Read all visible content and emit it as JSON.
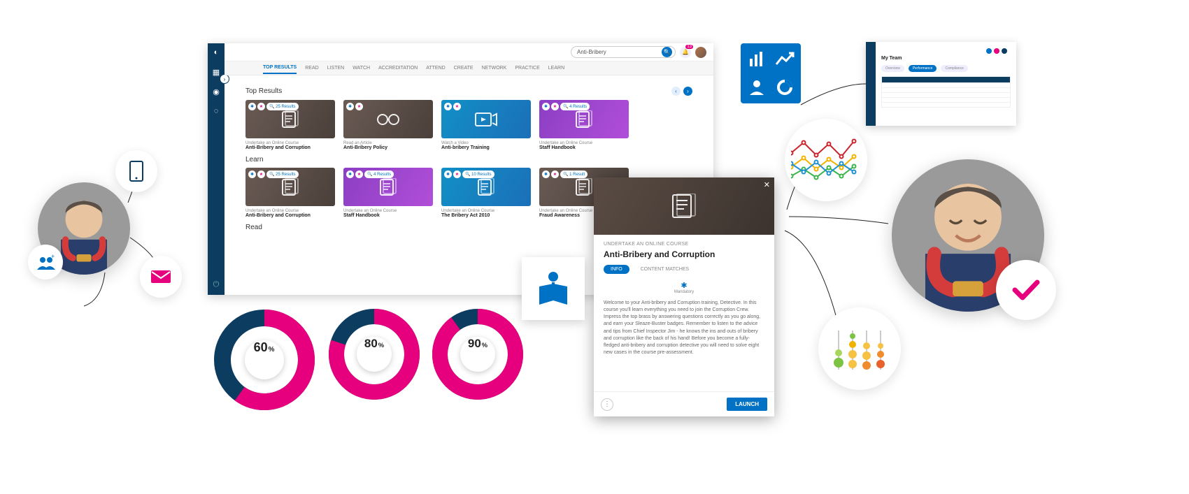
{
  "colors": {
    "navy": "#0d3c61",
    "blue": "#0072c6",
    "magenta": "#e6007e",
    "grey": "#888888"
  },
  "app": {
    "search_value": "Anti-Bribery",
    "notification_count": "13",
    "tabs": [
      "TOP RESULTS",
      "READ",
      "LISTEN",
      "WATCH",
      "ACCREDITATION",
      "ATTEND",
      "CREATE",
      "NETWORK",
      "PRACTICE",
      "LEARN"
    ],
    "active_tab_index": 0,
    "sections": {
      "top_results": {
        "heading": "Top Results",
        "cards": [
          {
            "type": "Undertake an Online Course",
            "title": "Anti-Bribery and Corruption",
            "badge": "25 Results",
            "variant": "brown",
            "icon": "document"
          },
          {
            "type": "Read an Article",
            "title": "Anti-Bribery Policy",
            "badge": "",
            "variant": "brown",
            "icon": "glasses"
          },
          {
            "type": "Watch a Video",
            "title": "Anti-bribery Training",
            "badge": "",
            "variant": "blue",
            "icon": "video"
          },
          {
            "type": "Undertake an Online Course",
            "title": "Staff Handbook",
            "badge": "4 Results",
            "variant": "purple",
            "icon": "document"
          }
        ]
      },
      "learn": {
        "heading": "Learn",
        "cards": [
          {
            "type": "Undertake an Online Course",
            "title": "Anti-Bribery and Corruption",
            "badge": "25 Results",
            "variant": "brown",
            "icon": "document"
          },
          {
            "type": "Undertake an Online Course",
            "title": "Staff Handbook",
            "badge": "4 Results",
            "variant": "purple",
            "icon": "document"
          },
          {
            "type": "Undertake an Online Course",
            "title": "The Bribery Act 2010",
            "badge": "10 Results",
            "variant": "blue",
            "icon": "document"
          },
          {
            "type": "Undertake an Online Course",
            "title": "Fraud Awareness",
            "badge": "1 Result",
            "variant": "brown",
            "icon": "document"
          }
        ]
      },
      "read": {
        "heading": "Read"
      }
    }
  },
  "modal": {
    "eyebrow": "UNDERTAKE AN ONLINE COURSE",
    "title": "Anti-Bribery and Corruption",
    "tabs": {
      "info": "INFO",
      "matches": "CONTENT MATCHES"
    },
    "mandatory_label": "Mandatory",
    "description": "Welcome to your Anti-bribery and Corruption training, Detective. In this course you'll learn everything you need to join the Corruption Crew. Impress the top brass by answering questions correctly as you go along, and earn your Sleaze-Buster badges. Remember to listen to the advice and tips from Chief Inspector Jim - he knows the ins and outs of bribery and corruption like the back of his hand! Before you become a fully-fledged anti-bribery and corruption detective you will need to solve eight new cases in the course pre-assessment.",
    "launch_label": "LAUNCH"
  },
  "donuts": [
    {
      "value": 60,
      "radius": 72,
      "stroke": 24,
      "primary": "#e6007e",
      "secondary": "#0d3c61"
    },
    {
      "value": 80,
      "radius": 65,
      "stroke": 22,
      "primary": "#e6007e",
      "secondary": "#0d3c61"
    },
    {
      "value": 90,
      "radius": 65,
      "stroke": 22,
      "primary": "#e6007e",
      "secondary": "#0d3c61"
    }
  ],
  "linechart": {
    "width": 100,
    "height": 70,
    "series": [
      {
        "color": "#c9252c",
        "points": [
          [
            0,
            25
          ],
          [
            18,
            10
          ],
          [
            36,
            28
          ],
          [
            54,
            12
          ],
          [
            72,
            30
          ],
          [
            90,
            8
          ]
        ]
      },
      {
        "color": "#f0b400",
        "points": [
          [
            0,
            45
          ],
          [
            18,
            32
          ],
          [
            36,
            48
          ],
          [
            54,
            34
          ],
          [
            72,
            46
          ],
          [
            90,
            30
          ]
        ]
      },
      {
        "color": "#3bb54a",
        "points": [
          [
            0,
            58
          ],
          [
            18,
            48
          ],
          [
            36,
            60
          ],
          [
            54,
            46
          ],
          [
            72,
            58
          ],
          [
            90,
            44
          ]
        ]
      },
      {
        "color": "#1e90d2",
        "points": [
          [
            0,
            40
          ],
          [
            18,
            52
          ],
          [
            36,
            38
          ],
          [
            54,
            54
          ],
          [
            72,
            40
          ],
          [
            90,
            52
          ]
        ]
      }
    ]
  },
  "dotchart": {
    "columns": [
      {
        "x": 18,
        "dots": [
          {
            "y": 58,
            "r": 7,
            "c": "#7cc243"
          },
          {
            "y": 44,
            "r": 5,
            "c": "#a7d65b"
          }
        ]
      },
      {
        "x": 38,
        "dots": [
          {
            "y": 60,
            "r": 6,
            "c": "#f6c244"
          },
          {
            "y": 46,
            "r": 6,
            "c": "#f6c244"
          },
          {
            "y": 32,
            "r": 5,
            "c": "#f0b400"
          },
          {
            "y": 20,
            "r": 4,
            "c": "#7cc243"
          }
        ]
      },
      {
        "x": 58,
        "dots": [
          {
            "y": 62,
            "r": 6,
            "c": "#f08c2e"
          },
          {
            "y": 48,
            "r": 6,
            "c": "#f6c244"
          },
          {
            "y": 34,
            "r": 5,
            "c": "#f6c244"
          }
        ]
      },
      {
        "x": 78,
        "dots": [
          {
            "y": 60,
            "r": 6,
            "c": "#e8602c"
          },
          {
            "y": 46,
            "r": 5,
            "c": "#f08c2e"
          },
          {
            "y": 34,
            "r": 4,
            "c": "#f6c244"
          }
        ]
      }
    ]
  },
  "mini_window": {
    "title": "My Team",
    "tab_labels": [
      "Overview",
      "Performance",
      "Compliance"
    ],
    "active_tab": 1
  }
}
